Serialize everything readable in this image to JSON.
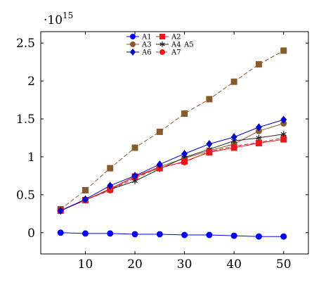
{
  "chart_data": {
    "type": "line",
    "title": "",
    "xlabel": "",
    "ylabel": "",
    "y_multiplier_label": "·10",
    "y_multiplier_exponent": "15",
    "xlim": [
      1,
      55
    ],
    "ylim": [
      -0.28,
      2.65
    ],
    "x_ticks": [
      10,
      20,
      30,
      40,
      50
    ],
    "y_ticks": [
      0,
      0.5,
      1,
      1.5,
      2,
      2.5
    ],
    "y_tick_labels": [
      "0",
      "0.5",
      "1",
      "1.5",
      "2",
      "2.5"
    ],
    "legend_position": "top-center",
    "grid": false,
    "series": [
      {
        "name": "A1",
        "color": "#0000ff",
        "marker": "circle",
        "dash": "solid",
        "x": [
          5,
          10,
          15,
          20,
          25,
          30,
          35,
          40,
          45,
          50
        ],
        "y": [
          0.0,
          -0.01,
          -0.01,
          -0.02,
          -0.02,
          -0.03,
          -0.03,
          -0.04,
          -0.05,
          -0.05
        ]
      },
      {
        "name": "A2",
        "color": "#e41a1c",
        "marker": "square",
        "dash": "solid",
        "x": [
          5,
          10,
          15,
          20,
          25,
          30,
          35,
          40,
          45,
          50
        ],
        "y": [
          0.29,
          0.43,
          0.57,
          0.74,
          0.85,
          0.94,
          1.06,
          1.12,
          1.18,
          1.23
        ]
      },
      {
        "name": "A3",
        "color": "#8b5a2b",
        "marker": "circle",
        "dash": "solid",
        "x": [
          5,
          10,
          15,
          20,
          25,
          30,
          35,
          40,
          45,
          50
        ],
        "y": [
          0.29,
          0.43,
          0.58,
          0.74,
          0.87,
          0.98,
          1.08,
          1.17,
          1.34,
          1.44
        ]
      },
      {
        "name": "A4",
        "color": "#222222",
        "marker": "star",
        "dash": "solid",
        "x": [
          5,
          10,
          15,
          20,
          25,
          30,
          35,
          40,
          45,
          50
        ],
        "y": [
          0.29,
          0.43,
          0.57,
          0.68,
          0.84,
          0.99,
          1.1,
          1.21,
          1.25,
          1.3
        ]
      },
      {
        "name": "A5",
        "color": "#8b5a2b",
        "marker": "square",
        "dash": "dashed",
        "x": [
          5,
          10,
          15,
          20,
          25,
          30,
          35,
          40,
          45,
          50
        ],
        "y": [
          0.31,
          0.56,
          0.85,
          1.12,
          1.33,
          1.57,
          1.76,
          1.99,
          2.22,
          2.4
        ]
      },
      {
        "name": "A6",
        "color": "#0000cc",
        "marker": "diamond",
        "dash": "solid",
        "x": [
          5,
          10,
          15,
          20,
          25,
          30,
          35,
          40,
          45,
          50
        ],
        "y": [
          0.29,
          0.44,
          0.62,
          0.75,
          0.9,
          1.04,
          1.17,
          1.26,
          1.39,
          1.49
        ]
      },
      {
        "name": "A7",
        "color": "#e41a1c",
        "marker": "circle",
        "dash": "dashed",
        "x": [
          5,
          10,
          15,
          20,
          25,
          30,
          35,
          40,
          45,
          50
        ],
        "y": [
          0.29,
          0.43,
          0.56,
          0.72,
          0.86,
          0.93,
          1.07,
          1.14,
          1.19,
          1.25
        ]
      }
    ]
  }
}
